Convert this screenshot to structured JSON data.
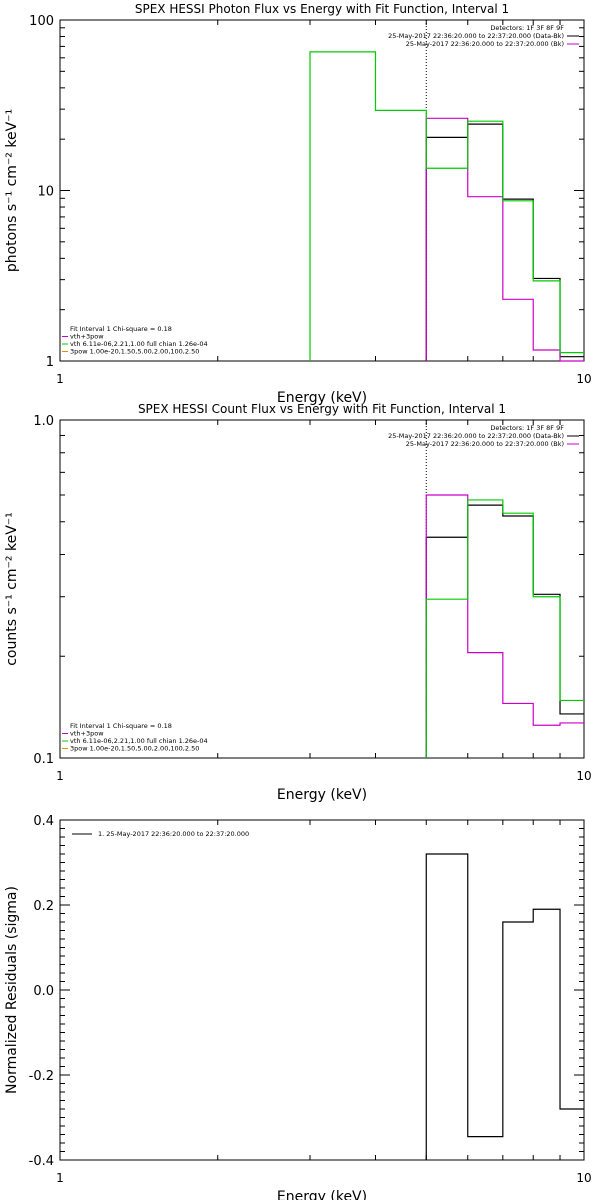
{
  "chart_data": [
    {
      "type": "line",
      "title": "SPEX HESSI Photon Flux vs Energy with Fit Function, Interval 1",
      "xlabel": "Energy (keV)",
      "ylabel": "photons s⁻¹ cm⁻² keV⁻¹",
      "x_scale": "log",
      "y_scale": "log",
      "xlim": [
        1,
        10
      ],
      "ylim": [
        1,
        100
      ],
      "x_tick_labels": [
        "1",
        "10"
      ],
      "y_tick_labels": [
        "1",
        "10",
        "100"
      ],
      "vline_x": 5.0,
      "legend_right": [
        {
          "text": "Detectors: 1F 3F 8F 9F",
          "color": "#000000"
        },
        {
          "text": "25-May-2017 22:36:20.000 to 22:37:20.000 (Data-Bk)",
          "color": "#000000"
        },
        {
          "text": "25-May-2017 22:36:20.000 to 22:37:20.000 (Bk)",
          "color": "#cc00cc"
        }
      ],
      "legend_left": [
        {
          "text": "Fit Interval  1    Chi-square = 0.18",
          "color": "#000000"
        },
        {
          "text": "vth+3pow",
          "color": "#cc00cc"
        },
        {
          "text": "vth 6.11e-06,2.21,1.00  full chian 1.26e-04",
          "color": "#00cc00"
        },
        {
          "text": "3pow 1.00e-20,1.50,5.00,2.00,100,2.50",
          "color": "#cc9900"
        }
      ],
      "series": [
        {
          "name": "Data-Bk",
          "color": "#000000",
          "edges": [
            5,
            6,
            7,
            8,
            9,
            10
          ],
          "values": [
            20.5,
            24.5,
            8.9,
            3.05,
            1.06
          ]
        },
        {
          "name": "Bk",
          "color": "#cc00cc",
          "edges": [
            5,
            6,
            7,
            8,
            9,
            10
          ],
          "values": [
            26.5,
            9.2,
            2.3,
            1.16,
            0.97
          ]
        },
        {
          "name": "vth",
          "color": "#00cc00",
          "edges": [
            3,
            4,
            5,
            6,
            7,
            8,
            9,
            10
          ],
          "values": [
            65,
            29.5,
            13.5,
            25.5,
            8.7,
            2.95,
            1.12
          ]
        }
      ]
    },
    {
      "type": "line",
      "title": "SPEX HESSI Count Flux vs Energy with Fit Function, Interval 1",
      "xlabel": "Energy (keV)",
      "ylabel": "counts s⁻¹ cm⁻² keV⁻¹",
      "x_scale": "log",
      "y_scale": "log",
      "xlim": [
        1,
        10
      ],
      "ylim": [
        0.1,
        1.0
      ],
      "x_tick_labels": [
        "1",
        "10"
      ],
      "y_tick_labels": [
        "0.1",
        "1.0"
      ],
      "vline_x": 5.0,
      "legend_right": [
        {
          "text": "Detectors: 1F 3F 8F 9F",
          "color": "#000000"
        },
        {
          "text": "25-May-2017 22:36:20.000 to 22:37:20.000 (Data-Bk)",
          "color": "#000000"
        },
        {
          "text": "25-May-2017 22:36:20.000 to 22:37:20.000 (Bk)",
          "color": "#cc00cc"
        }
      ],
      "legend_left": [
        {
          "text": "Fit Interval  1    Chi-square = 0.18",
          "color": "#000000"
        },
        {
          "text": "vth+3pow",
          "color": "#cc00cc"
        },
        {
          "text": "vth 6.11e-06,2.21,1.00  full chian 1.26e-04",
          "color": "#00cc00"
        },
        {
          "text": "3pow 1.00e-20,1.50,5.00,2.00,100,2.50",
          "color": "#cc9900"
        }
      ],
      "series": [
        {
          "name": "Data-Bk",
          "color": "#000000",
          "edges": [
            5,
            6,
            7,
            8,
            9,
            10
          ],
          "values": [
            0.45,
            0.56,
            0.52,
            0.305,
            0.135
          ]
        },
        {
          "name": "Bk",
          "color": "#cc00cc",
          "edges": [
            5,
            6,
            7,
            8,
            9,
            10
          ],
          "values": [
            0.6,
            0.205,
            0.145,
            0.125,
            0.127
          ]
        },
        {
          "name": "vth",
          "color": "#00cc00",
          "edges": [
            5,
            6,
            7,
            8,
            9,
            10
          ],
          "values": [
            0.295,
            0.58,
            0.53,
            0.3,
            0.148
          ]
        }
      ]
    },
    {
      "type": "line",
      "title": "",
      "xlabel": "Energy (keV)",
      "ylabel": "Normalized Residuals (sigma)",
      "x_scale": "log",
      "y_scale": "linear",
      "xlim": [
        1,
        10
      ],
      "ylim": [
        -0.4,
        0.4
      ],
      "x_tick_labels": [
        "1",
        "10"
      ],
      "y_tick_labels": [
        "0.4",
        "0.2",
        "0.0",
        "-0.2",
        "-0.4"
      ],
      "legend_left": [
        {
          "text": "1. 25-May-2017 22:36:20.000 to 22:37:20.000",
          "color": "#000000"
        }
      ],
      "series": [
        {
          "name": "1. 25-May-2017 22:36:20.000 to 22:37:20.000",
          "color": "#000000",
          "edges": [
            5,
            6,
            7,
            8,
            9,
            10
          ],
          "values": [
            0.32,
            -0.345,
            0.16,
            0.19,
            -0.28
          ]
        }
      ]
    }
  ]
}
